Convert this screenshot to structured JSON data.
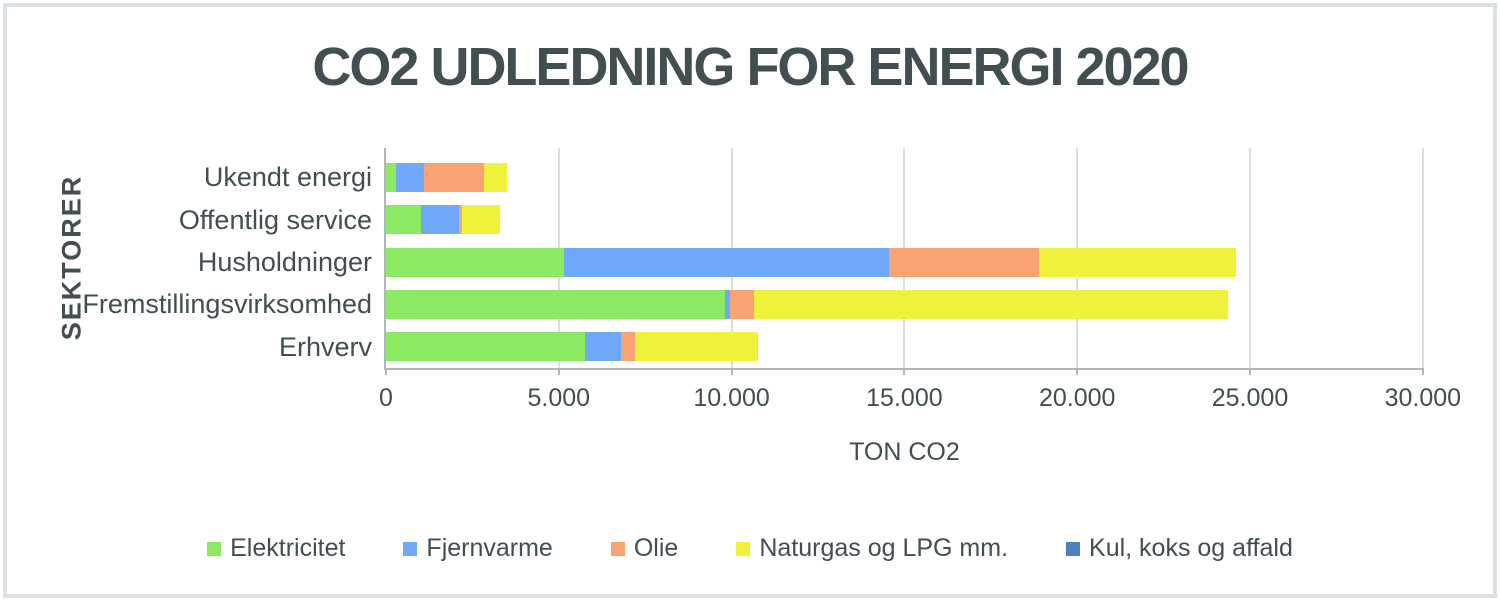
{
  "title": "CO2 UDLEDNING FOR ENERGI 2020",
  "chart_data": {
    "type": "bar",
    "orientation": "horizontal",
    "stacked": true,
    "title": "CO2 UDLEDNING FOR ENERGI 2020",
    "xlabel": "TON CO2",
    "ylabel": "SEKTORER",
    "xlim": [
      0,
      30000
    ],
    "x_tick_step": 5000,
    "x_tick_labels": [
      "0",
      "5.000",
      "10.000",
      "15.000",
      "20.000",
      "25.000",
      "30.000"
    ],
    "grid": true,
    "legend_position": "bottom",
    "categories": [
      "Ukendt energi",
      "Offentlig service",
      "Husholdninger",
      "Fremstillingsvirksomhed",
      "Erhverv"
    ],
    "series": [
      {
        "name": "Elektricitet",
        "color": "#8BEA62",
        "values": [
          300,
          1000,
          5150,
          9800,
          5750
        ]
      },
      {
        "name": "Fjernvarme",
        "color": "#6FA7F9",
        "values": [
          800,
          1100,
          9400,
          150,
          1050
        ]
      },
      {
        "name": "Olie",
        "color": "#F9A373",
        "values": [
          1750,
          100,
          4350,
          700,
          400
        ]
      },
      {
        "name": "Naturgas og LPG mm.",
        "color": "#EEF23B",
        "values": [
          650,
          1100,
          5700,
          13700,
          3550
        ]
      },
      {
        "name": "Kul, koks og affald",
        "color": "#4E80C0",
        "values": [
          0,
          0,
          0,
          0,
          0
        ]
      }
    ],
    "category_totals": [
      3500,
      3300,
      24600,
      24350,
      10750
    ]
  },
  "colors": {
    "text": "#414E52",
    "axis_line": "#AEB7B4",
    "gridline": "#D9DFDD",
    "frame_border": "#D9E2DF",
    "background": "#FFFFFF"
  }
}
